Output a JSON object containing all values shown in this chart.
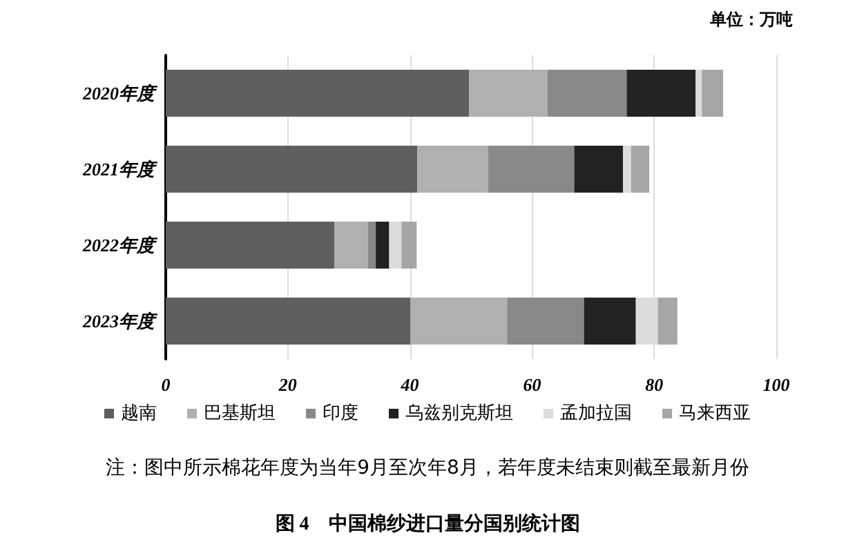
{
  "chart_data": {
    "type": "bar",
    "orientation": "horizontal",
    "stacked": true,
    "title": "图 4　中国棉纱进口量分国别统计图",
    "annotations": [
      "单位：万吨",
      "注：图中所示棉花年度为当年9月至次年8月，若年度未结束则截至最新月份"
    ],
    "categories": [
      "2020年度",
      "2021年度",
      "2022年度",
      "2023年度"
    ],
    "series": [
      {
        "name": "越南",
        "color": "#5f5f5f",
        "values": [
          49.7,
          41.2,
          27.6,
          40.1
        ]
      },
      {
        "name": "巴基斯坦",
        "color": "#b0b0b0",
        "values": [
          12.8,
          11.6,
          5.5,
          15.8
        ]
      },
      {
        "name": "印度",
        "color": "#898989",
        "values": [
          13.0,
          14.1,
          1.3,
          12.6
        ]
      },
      {
        "name": "乌兹别克斯坦",
        "color": "#222222",
        "values": [
          11.3,
          8.0,
          2.2,
          8.5
        ]
      },
      {
        "name": "孟加拉国",
        "color": "#dcdcdc",
        "values": [
          1.0,
          1.3,
          2.0,
          3.6
        ]
      },
      {
        "name": "马来西亚",
        "color": "#a6a6a6",
        "values": [
          3.5,
          3.0,
          2.5,
          3.2
        ]
      }
    ],
    "xlim": [
      0,
      100
    ],
    "xticks": [
      0,
      20,
      40,
      60,
      80,
      100
    ],
    "grid": "x",
    "legend": "bottom"
  }
}
